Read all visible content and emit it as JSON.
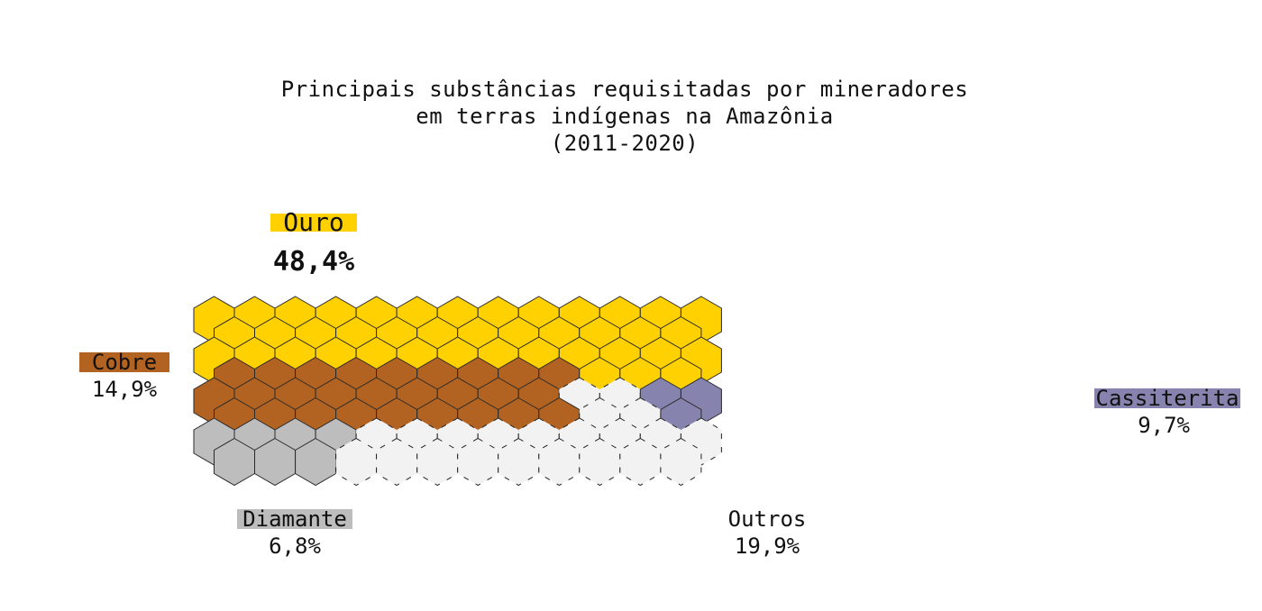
{
  "chart_data": {
    "type": "hexagon-waffle",
    "title": "Principais substâncias requisitadas por mineradores\nem terras indígenas na Amazônia\n(2011-2020)",
    "categories": [
      {
        "name": "Ouro",
        "percent": "48,4%",
        "value": 48.4,
        "color": "#FFD100"
      },
      {
        "name": "Cobre",
        "percent": "14,9%",
        "value": 14.9,
        "color": "#B26321"
      },
      {
        "name": "Cassiterita",
        "percent": "9,7%",
        "value": 9.7,
        "color": "#8684AE"
      },
      {
        "name": "Diamante",
        "percent": "6,8%",
        "value": 6.8,
        "color": "#BDBDBD"
      },
      {
        "name": "Outros",
        "percent": "19,9%",
        "value": 19.9,
        "color": "#F2F2F2"
      }
    ]
  }
}
